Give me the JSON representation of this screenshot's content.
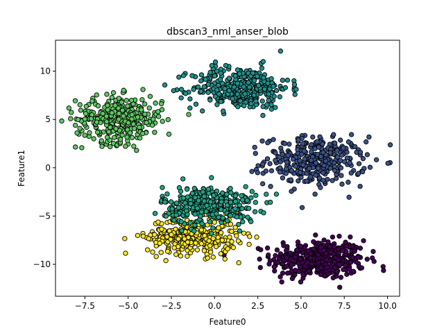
{
  "chart_data": {
    "type": "scatter",
    "title": "dbscan3_nml_anser_blob",
    "xlabel": "Feature0",
    "ylabel": "Feature1",
    "xlim": [
      -9.2,
      10.7
    ],
    "ylim": [
      -13.3,
      13.2
    ],
    "xticks": [
      -7.5,
      -5.0,
      -2.5,
      0.0,
      2.5,
      5.0,
      7.5,
      10.0
    ],
    "xtick_labels": [
      "−7.5",
      "−5.0",
      "−2.5",
      "0.0",
      "2.5",
      "5.0",
      "7.5",
      "10.0"
    ],
    "yticks": [
      -10,
      -5,
      0,
      5,
      10
    ],
    "ytick_labels": [
      "−10",
      "−5",
      "0",
      "5",
      "10"
    ],
    "grid": false,
    "legend": false,
    "marker_edge_color": "#000000",
    "clusters": [
      {
        "color": "#440154",
        "center": [
          6.0,
          -9.5
        ],
        "spread": [
          1.35,
          1.0
        ],
        "n": 420
      },
      {
        "color": "#3b528b",
        "center": [
          5.8,
          0.7
        ],
        "spread": [
          1.45,
          1.25
        ],
        "n": 330
      },
      {
        "color": "#21918c",
        "center": [
          1.5,
          8.3
        ],
        "spread": [
          1.4,
          1.1
        ],
        "n": 340
      },
      {
        "color": "#5ec962",
        "center": [
          -5.5,
          5.0
        ],
        "spread": [
          1.25,
          1.2
        ],
        "n": 330
      },
      {
        "color": "#fde725",
        "center": [
          -1.3,
          -7.1
        ],
        "spread": [
          1.3,
          0.95
        ],
        "n": 330
      },
      {
        "color": "#20a486",
        "center": [
          -0.3,
          -3.9
        ],
        "spread": [
          1.35,
          1.0
        ],
        "n": 330
      }
    ]
  }
}
